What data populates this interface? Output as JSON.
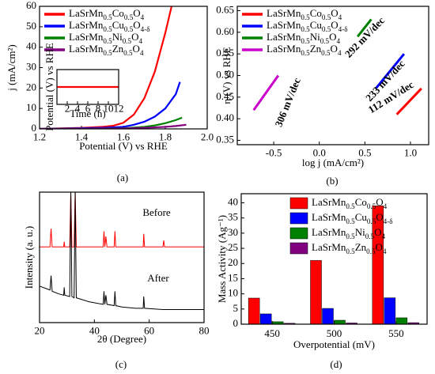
{
  "chart_data": [
    {
      "type": "line",
      "caption": "(a)",
      "xlabel": "Potential (V) vs RHE",
      "ylabel": "j (mA/cm²)",
      "xlim": [
        1.2,
        2.0
      ],
      "xticks": [
        1.2,
        1.4,
        1.6,
        1.8,
        {
          "value": 2,
          "label": "2.0"
        }
      ],
      "ylim": [
        0,
        60
      ],
      "yticks": [
        0,
        10,
        20,
        30,
        40,
        50,
        60
      ],
      "legend": "upper left",
      "series": [
        {
          "name": "LaSrMn0.5Co0.5O4",
          "color": "#ff0000",
          "x": [
            1.2,
            1.4,
            1.5,
            1.55,
            1.6,
            1.65,
            1.7,
            1.75,
            1.8,
            1.83
          ],
          "values": [
            0,
            0.5,
            1,
            1.5,
            3,
            7,
            15,
            28,
            47,
            60
          ]
        },
        {
          "name": "LaSrMn0.5Cu0.5O4-δ",
          "color": "#0000ff",
          "x": [
            1.2,
            1.5,
            1.6,
            1.65,
            1.7,
            1.75,
            1.8,
            1.85,
            1.87
          ],
          "values": [
            0,
            0.5,
            1,
            2,
            3.5,
            6,
            10,
            17,
            23
          ]
        },
        {
          "name": "LaSrMn0.5Ni0.5O4",
          "color": "#008000",
          "x": [
            1.2,
            1.6,
            1.7,
            1.75,
            1.8,
            1.85,
            1.88
          ],
          "values": [
            0,
            0.3,
            1,
            1.7,
            2.8,
            4.3,
            5.5
          ]
        },
        {
          "name": "LaSrMn0.5Zn0.5O4",
          "color": "#800080",
          "x": [
            1.2,
            1.6,
            1.7,
            1.8,
            1.85,
            1.9
          ],
          "values": [
            0,
            0.2,
            0.5,
            1,
            1.4,
            2
          ]
        }
      ]
    },
    {
      "type": "line",
      "xlabel": "Time (h)",
      "ylabel": "Potential (V) vs RHE",
      "xlim": [
        0,
        12
      ],
      "xticks": [
        2,
        4,
        6,
        8,
        10,
        12
      ],
      "ylim": [
        1.4,
        1.8
      ],
      "series": [
        {
          "color": "#ff0000",
          "x": [
            0,
            2,
            4,
            6,
            8,
            10,
            12
          ],
          "values": [
            1.6,
            1.6,
            1.6,
            1.6,
            1.6,
            1.6,
            1.6
          ]
        }
      ]
    },
    {
      "type": "line",
      "caption": "(b)",
      "xlabel": "log j (mA/cm²)",
      "ylabel": "η (V) vs RHE",
      "xlim": [
        -0.9,
        1.2
      ],
      "xticks": [
        -0.5,
        {
          "value": 0,
          "label": "0.0"
        },
        0.5,
        {
          "value": 1,
          "label": "1.0"
        }
      ],
      "ylim": [
        0.34,
        0.66
      ],
      "yticks": [
        0.35,
        {
          "value": 0.4,
          "label": "0.40"
        },
        0.45,
        {
          "value": 0.5,
          "label": "0.50"
        },
        0.55,
        {
          "value": 0.6,
          "label": "0.60"
        },
        0.65
      ],
      "legend": "upper left",
      "annotations": [
        "112 mV/dec",
        "233 mV/dec",
        "292 mV/dec",
        "306 mV/dec"
      ],
      "series": [
        {
          "name": "LaSrMn0.5Co0.5O4",
          "color": "#ff0000",
          "x": [
            0.85,
            1.12
          ],
          "values": [
            0.41,
            0.47
          ]
        },
        {
          "name": "LaSrMn0.5Cu0.5O4-δ",
          "color": "#0000ff",
          "x": [
            0.62,
            0.93
          ],
          "values": [
            0.47,
            0.55
          ]
        },
        {
          "name": "LaSrMn0.5Ni0.5O4",
          "color": "#008000",
          "x": [
            0.42,
            0.57
          ],
          "values": [
            0.59,
            0.63
          ]
        },
        {
          "name": "LaSrMn0.5Zn0.5O4",
          "color": "#cc00cc",
          "x": [
            -0.72,
            -0.45
          ],
          "values": [
            0.42,
            0.5
          ]
        }
      ]
    },
    {
      "type": "line",
      "caption": "(c)",
      "xlabel": "2θ (Degree)",
      "ylabel": "Intensity (a. u.)",
      "xlim": [
        20,
        80
      ],
      "xticks": [
        20,
        40,
        60,
        80
      ],
      "ylim": [
        0,
        100
      ],
      "series": [
        {
          "name": "Before",
          "color": "#ff0000",
          "x": [
            20,
            23.8,
            24.2,
            24.6,
            27,
            28.8,
            29,
            29.2,
            31,
            31.4,
            31.8,
            32.6,
            33,
            33.4,
            38,
            43.2,
            43.5,
            43.8,
            44.2,
            44.6,
            47.2,
            47.5,
            47.8,
            50,
            55,
            57.8,
            58,
            58.3,
            65,
            65.3,
            65.6,
            69,
            80
          ],
          "values": [
            58,
            58,
            72,
            58,
            58,
            58,
            62,
            58,
            58,
            100,
            58,
            58,
            100,
            58,
            58,
            58,
            70,
            58,
            66,
            58,
            58,
            70,
            58,
            58,
            58,
            58,
            68,
            58,
            58,
            63,
            58,
            58,
            58
          ]
        },
        {
          "name": "After",
          "color": "#000000",
          "x": [
            20,
            23.8,
            24.2,
            24.6,
            27,
            28.8,
            29,
            29.2,
            31,
            31.4,
            31.8,
            32.6,
            33,
            33.4,
            38,
            43.2,
            43.5,
            43.8,
            44.2,
            44.6,
            47.2,
            47.5,
            47.8,
            50,
            55,
            57.8,
            58,
            58.3,
            65,
            70,
            80
          ],
          "values": [
            28,
            25,
            36,
            24,
            22,
            21,
            27,
            21,
            20,
            100,
            20,
            19,
            100,
            19,
            16,
            14,
            24,
            14,
            21,
            14,
            13,
            24,
            13,
            12,
            11,
            11,
            20,
            11,
            10,
            10,
            10
          ]
        }
      ]
    },
    {
      "type": "bar",
      "caption": "(d)",
      "xlabel": "Overpotential (mV)",
      "ylabel": "Mass Activity (Ag⁻¹)",
      "categories": [
        "450",
        "500",
        "550"
      ],
      "ylim": [
        0,
        43
      ],
      "yticks": [
        0,
        5,
        10,
        15,
        20,
        25,
        30,
        35,
        40
      ],
      "legend": "upper right",
      "series": [
        {
          "name": "LaSrMn0.5Co0.5O4",
          "color": "#ff0000",
          "values": [
            8.6,
            21,
            39
          ]
        },
        {
          "name": "LaSrMn0.5Cu0.5O4-δ",
          "color": "#0000ff",
          "values": [
            3.4,
            5.2,
            8.7
          ]
        },
        {
          "name": "LaSrMn0.5Ni0.5O4",
          "color": "#008000",
          "values": [
            0.8,
            1.3,
            2.1
          ]
        },
        {
          "name": "LaSrMn0.5Zn0.5O4",
          "color": "#800080",
          "values": [
            0.3,
            0.4,
            0.5
          ]
        }
      ]
    }
  ]
}
